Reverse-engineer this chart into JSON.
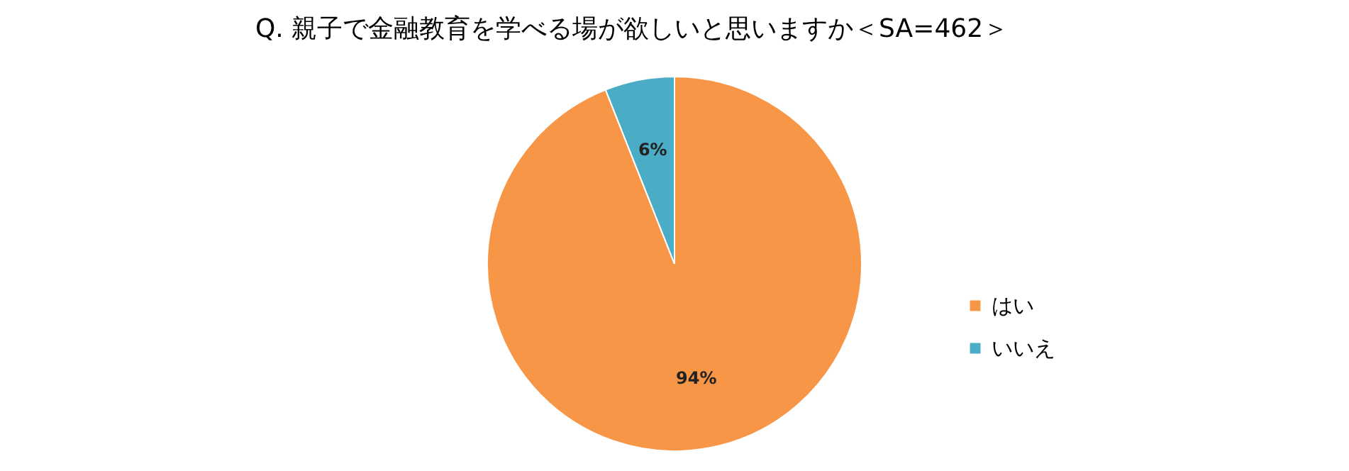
{
  "chart_data": {
    "type": "pie",
    "title": "Q. 親子で金融教育を学べる場が欲しいと思いますか＜SA=462＞",
    "categories": [
      "はい",
      "いいえ"
    ],
    "values": [
      94,
      6
    ],
    "colors": [
      "#f79646",
      "#4bacc6"
    ],
    "value_labels": [
      "94%",
      "6%"
    ],
    "legend": "right"
  }
}
